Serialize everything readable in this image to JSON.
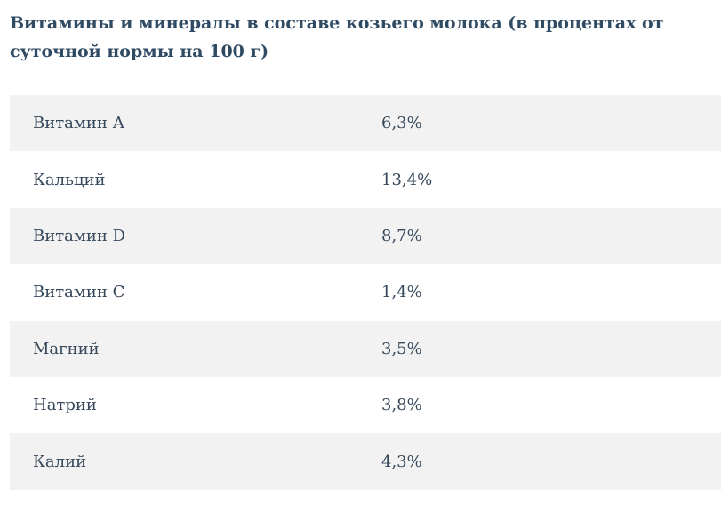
{
  "title": "Витамины и минералы в составе козьего молока (в процентах от суточной нормы на 100 г)",
  "table": {
    "rows": [
      [
        "Витамин А",
        "6,3%"
      ],
      [
        "Кальций",
        "13,4%"
      ],
      [
        "Витамин D",
        "8,7%"
      ],
      [
        "Витамин С",
        "1,4%"
      ],
      [
        "Магний",
        "3,5%"
      ],
      [
        "Натрий",
        "3,8%"
      ],
      [
        "Калий",
        "4,3%"
      ]
    ]
  }
}
